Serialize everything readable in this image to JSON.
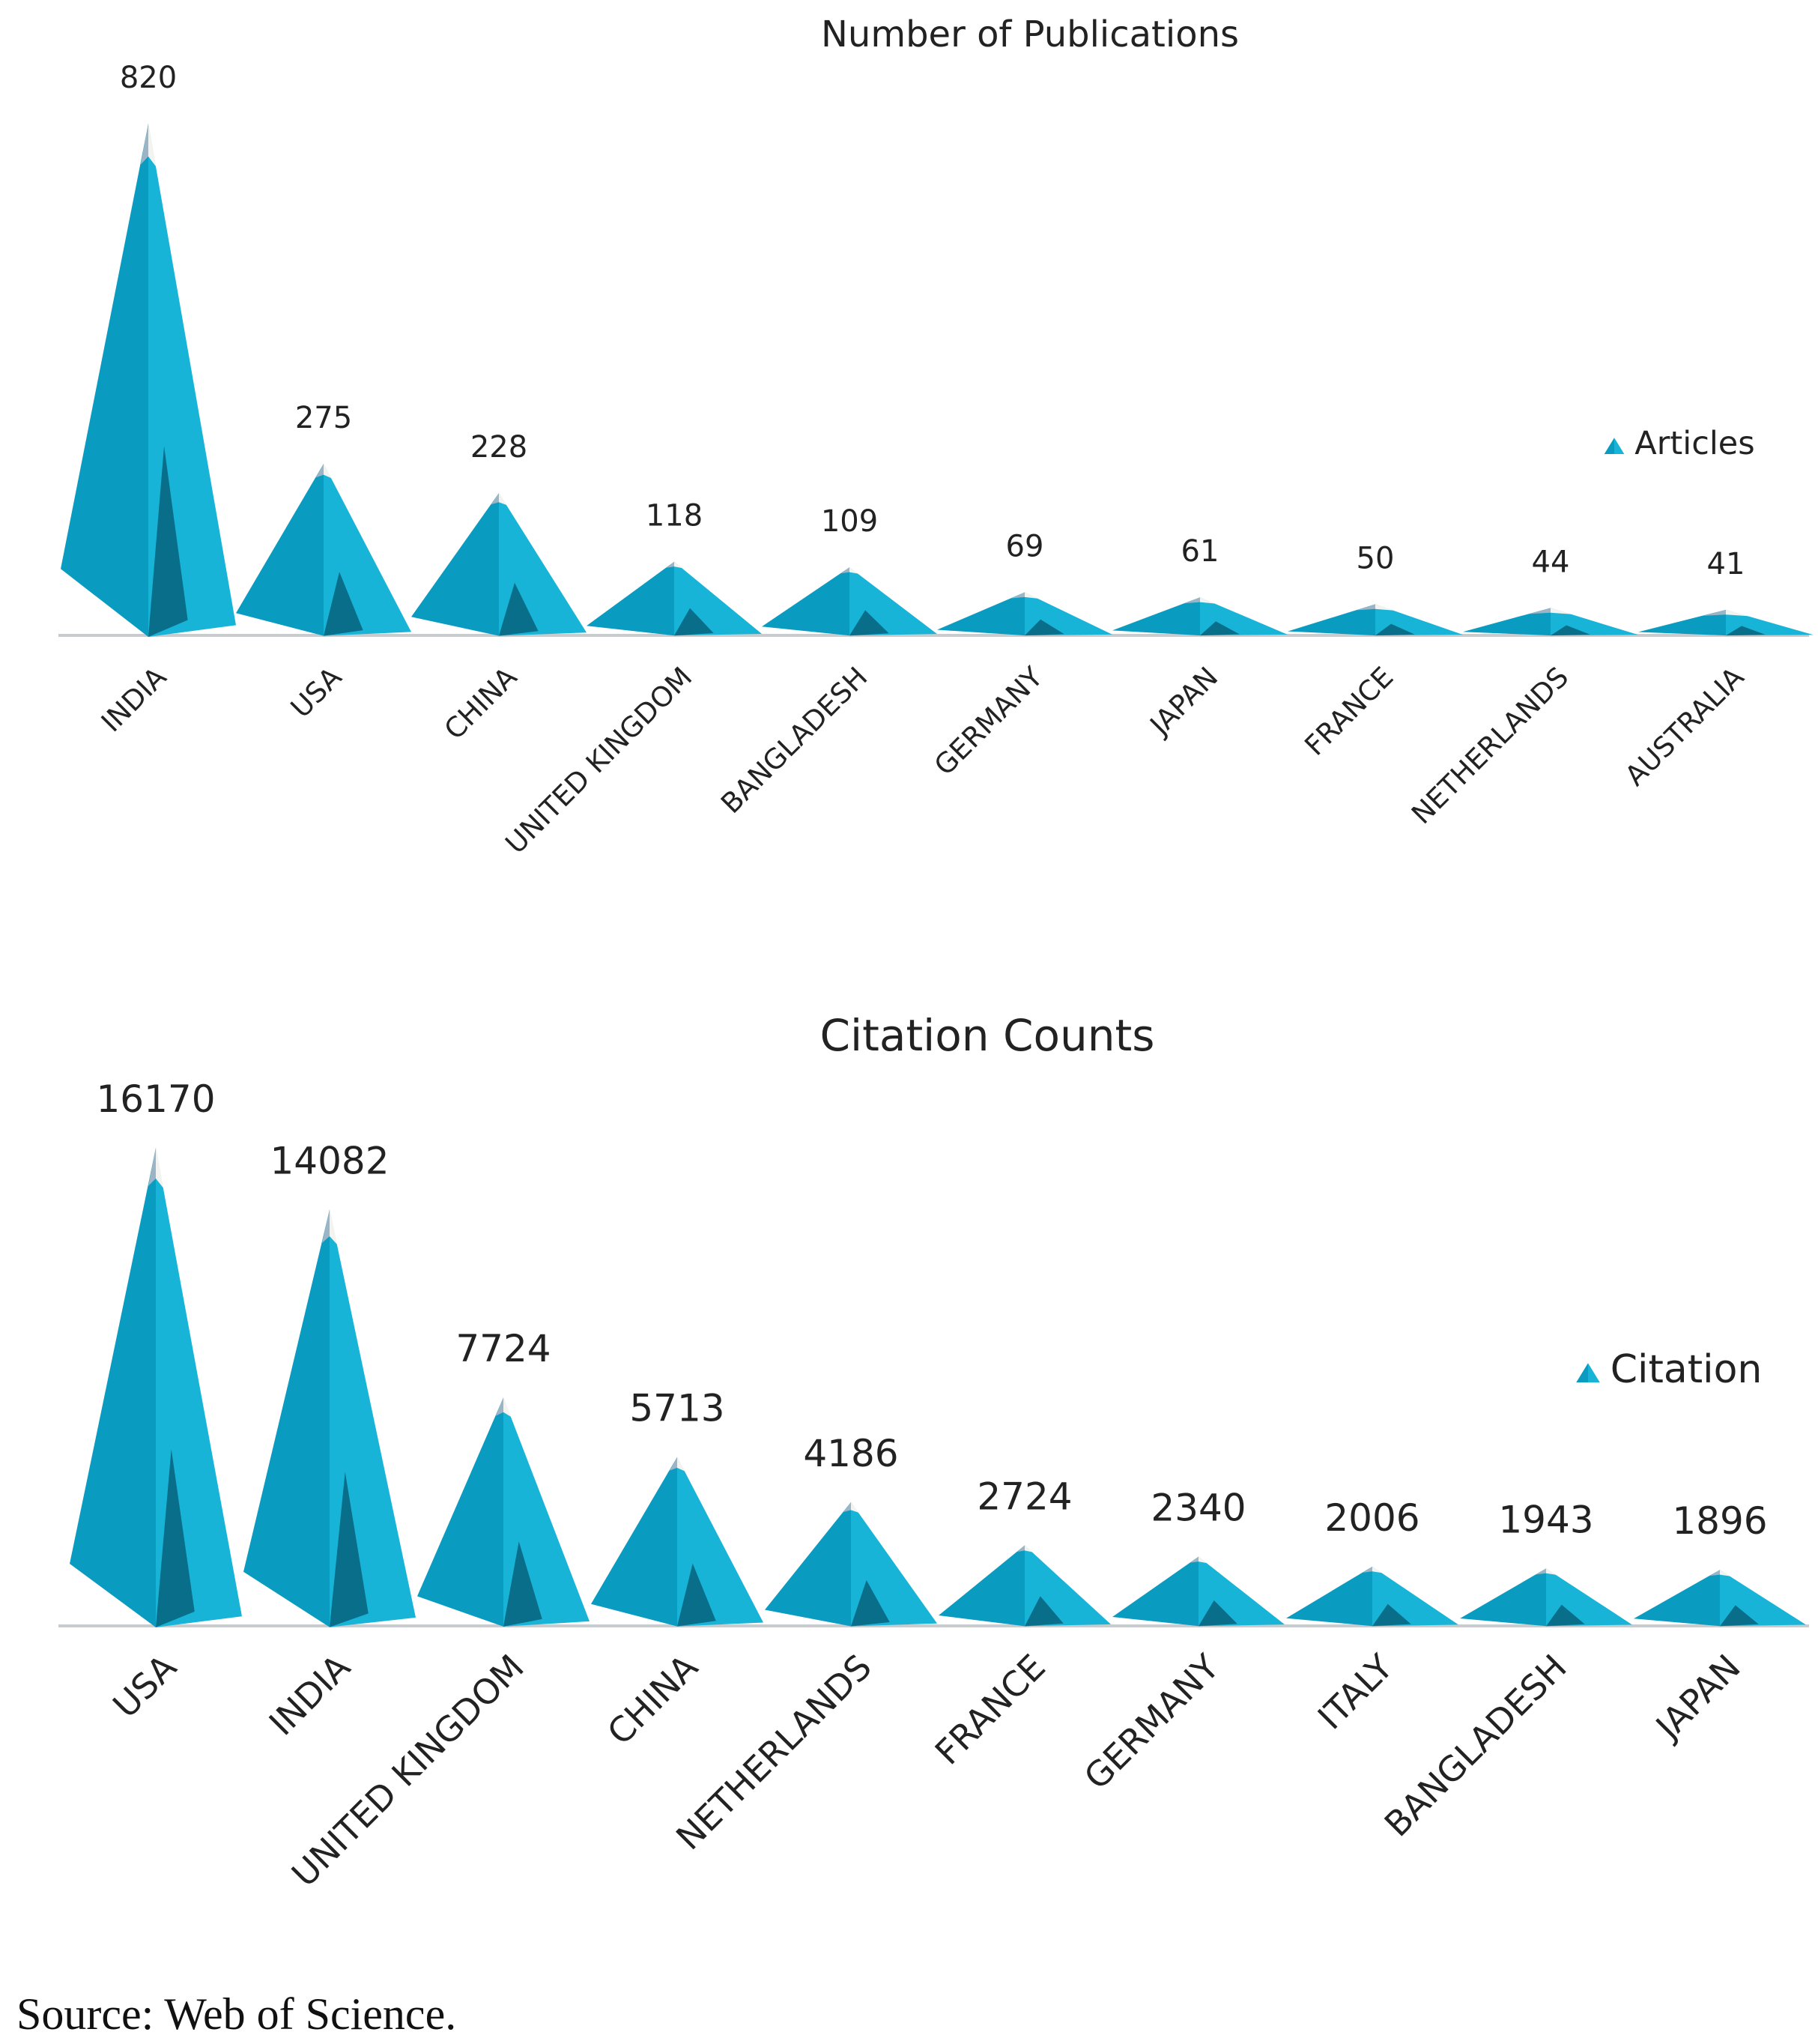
{
  "chart_data": [
    {
      "type": "bar",
      "mark_shape": "mountain",
      "title": "Number of Publications",
      "legend": "Articles",
      "legend_position": "right",
      "categories": [
        "INDIA",
        "USA",
        "CHINA",
        "UNITED KINGDOM",
        "BANGLADESH",
        "GERMANY",
        "JAPAN",
        "FRANCE",
        "NETHERLANDS",
        "AUSTRALIA"
      ],
      "values": [
        820,
        275,
        228,
        118,
        109,
        69,
        61,
        50,
        44,
        41
      ],
      "ylim": [
        0,
        820
      ],
      "xlabel": "",
      "ylabel": ""
    },
    {
      "type": "bar",
      "mark_shape": "mountain",
      "title": "Citation Counts",
      "legend": "Citation",
      "legend_position": "right",
      "categories": [
        "USA",
        "INDIA",
        "UNITED KINGDOM",
        "CHINA",
        "NETHERLANDS",
        "FRANCE",
        "GERMANY",
        "ITALY",
        "BANGLADESH",
        "JAPAN"
      ],
      "values": [
        16170,
        14082,
        7724,
        5713,
        4186,
        2724,
        2340,
        2006,
        1943,
        1896
      ],
      "ylim": [
        0,
        16170
      ],
      "xlabel": "",
      "ylabel": ""
    }
  ],
  "source": "Source: Web of Science.",
  "colors": {
    "light": "#18b4d8",
    "mid": "#0a9bc1",
    "dark": "#07627b",
    "snow": "#f3f3ef",
    "snow_shadow": "#9bb4c6",
    "axis": "#c9cccf"
  }
}
